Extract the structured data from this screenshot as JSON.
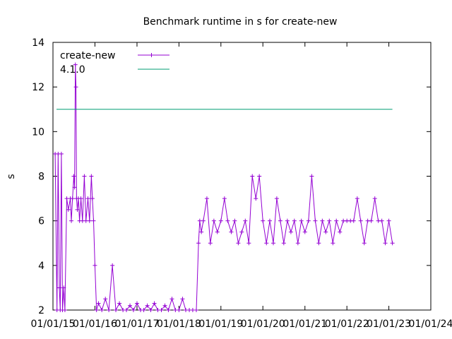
{
  "chart_data": {
    "type": "line",
    "title": "Benchmark runtime in s for create-new",
    "ylabel": "s",
    "xlabel": "",
    "ylim": [
      2,
      14
    ],
    "xlim": [
      "2015-01-01",
      "2024-01-01"
    ],
    "y_ticks": [
      "2",
      "4",
      "6",
      "8",
      "10",
      "12",
      "14"
    ],
    "x_ticks": [
      "01/01/15",
      "01/01/16",
      "01/01/17",
      "01/01/18",
      "01/01/19",
      "01/01/20",
      "01/01/21",
      "01/01/22",
      "01/01/23",
      "01/01/24"
    ],
    "x_tick_dates": [
      "2015-01-01",
      "2016-01-01",
      "2017-01-01",
      "2018-01-01",
      "2019-01-01",
      "2020-01-01",
      "2021-01-01",
      "2022-01-01",
      "2023-01-01",
      "2024-01-01"
    ],
    "legend_position": "top-left",
    "series": [
      {
        "name": "create-new",
        "color": "#9400d3",
        "marker": "plus",
        "x": [
          "2015-01-20",
          "2015-02-05",
          "2015-02-15",
          "2015-02-25",
          "2015-03-05",
          "2015-03-15",
          "2015-03-25",
          "2015-04-05",
          "2015-04-15",
          "2015-05-01",
          "2015-05-15",
          "2015-06-01",
          "2015-06-10",
          "2015-06-20",
          "2015-07-01",
          "2015-07-08",
          "2015-07-15",
          "2015-07-20",
          "2015-07-25",
          "2015-08-01",
          "2015-08-10",
          "2015-08-20",
          "2015-09-01",
          "2015-09-15",
          "2015-10-01",
          "2015-10-15",
          "2015-11-01",
          "2015-11-15",
          "2015-12-01",
          "2015-12-10",
          "2015-12-20",
          "2016-01-01",
          "2016-01-15",
          "2016-02-01",
          "2016-03-01",
          "2016-04-01",
          "2016-05-01",
          "2016-06-01",
          "2016-07-01",
          "2016-08-01",
          "2016-09-01",
          "2016-10-01",
          "2016-11-01",
          "2016-12-01",
          "2017-01-01",
          "2017-02-01",
          "2017-03-01",
          "2017-04-01",
          "2017-05-01",
          "2017-06-01",
          "2017-07-01",
          "2017-08-01",
          "2017-09-01",
          "2017-10-01",
          "2017-11-01",
          "2017-12-01",
          "2018-01-01",
          "2018-02-01",
          "2018-03-01",
          "2018-04-01",
          "2018-05-01",
          "2018-06-01",
          "2018-06-20",
          "2018-07-01",
          "2018-07-15",
          "2018-08-01",
          "2018-09-01",
          "2018-10-01",
          "2018-11-01",
          "2018-12-01",
          "2019-01-01",
          "2019-02-01",
          "2019-03-01",
          "2019-04-01",
          "2019-05-01",
          "2019-06-01",
          "2019-07-01",
          "2019-08-01",
          "2019-09-01",
          "2019-10-01",
          "2019-11-01",
          "2019-12-01",
          "2020-01-01",
          "2020-02-01",
          "2020-03-01",
          "2020-04-01",
          "2020-05-01",
          "2020-06-01",
          "2020-07-01",
          "2020-08-01",
          "2020-09-01",
          "2020-10-01",
          "2020-11-01",
          "2020-12-01",
          "2021-01-01",
          "2021-02-01",
          "2021-03-01",
          "2021-04-01",
          "2021-05-01",
          "2021-06-01",
          "2021-07-01",
          "2021-08-01",
          "2021-09-01",
          "2021-10-01",
          "2021-11-01",
          "2021-12-01",
          "2022-01-01",
          "2022-02-01",
          "2022-03-01",
          "2022-04-01",
          "2022-05-01",
          "2022-06-01",
          "2022-07-01",
          "2022-08-01",
          "2022-09-01",
          "2022-10-01",
          "2022-11-01",
          "2022-12-01",
          "2023-01-01",
          "2023-02-01"
        ],
        "y": [
          9,
          2,
          9,
          3,
          2,
          9,
          2,
          3,
          2,
          7,
          6.5,
          7,
          6,
          7,
          8,
          7.5,
          13,
          12,
          7,
          6.5,
          7,
          6,
          7,
          6,
          8,
          6,
          7,
          6,
          8,
          7,
          6,
          4,
          2,
          2.3,
          2,
          2.5,
          2,
          4,
          2,
          2.3,
          2,
          2,
          2.2,
          2,
          2.3,
          2,
          2,
          2.2,
          2,
          2.3,
          2,
          2,
          2.2,
          2,
          2.5,
          2,
          2,
          2.5,
          2,
          2,
          2,
          2,
          5,
          6,
          5.5,
          6,
          7,
          5,
          6,
          5.5,
          6,
          7,
          6,
          5.5,
          6,
          5,
          5.5,
          6,
          5,
          8,
          7,
          8,
          6,
          5,
          6,
          5,
          7,
          6,
          5,
          6,
          5.5,
          6,
          5,
          6,
          5.5,
          6,
          8,
          6,
          5,
          6,
          5.5,
          6,
          5,
          6,
          5.5,
          6,
          6,
          6,
          6,
          7,
          6,
          5,
          6,
          6,
          7,
          6,
          6,
          5,
          6,
          5
        ]
      },
      {
        "name": "4.1.0",
        "color": "#009e73",
        "marker": "none",
        "x": [
          "2015-02-01",
          "2023-02-01"
        ],
        "y": [
          11,
          11
        ]
      }
    ]
  }
}
